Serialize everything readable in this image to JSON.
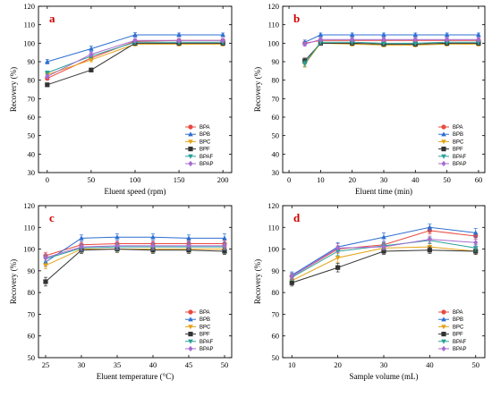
{
  "series_styles": [
    {
      "name": "BPA",
      "color": "#e84a40",
      "marker": "circle"
    },
    {
      "name": "BPB",
      "color": "#2e6fd0",
      "marker": "triangle-up"
    },
    {
      "name": "BPC",
      "color": "#e6a317",
      "marker": "triangle-down"
    },
    {
      "name": "BPF",
      "color": "#333333",
      "marker": "square"
    },
    {
      "name": "BPAF",
      "color": "#2aa198",
      "marker": "triangle-down"
    },
    {
      "name": "BPAP",
      "color": "#a86bd0",
      "marker": "diamond"
    }
  ],
  "chart_data": [
    {
      "type": "line",
      "panel": "a",
      "xlabel": "Eluent speed  (rpm)",
      "ylabel": "Recovery (%)",
      "xlim": [
        -10,
        210
      ],
      "ylim": [
        30,
        120
      ],
      "xticks": [
        0,
        50,
        100,
        150,
        200
      ],
      "yticks": [
        30,
        40,
        50,
        60,
        70,
        80,
        90,
        100,
        110,
        120
      ],
      "x": [
        0,
        50,
        100,
        150,
        200
      ],
      "grid": false,
      "legend": "bottom-right",
      "series": [
        {
          "name": "BPA",
          "values": [
            81,
            92,
            101,
            101.5,
            101.5
          ],
          "errors": [
            1,
            1.2,
            1,
            1,
            1
          ]
        },
        {
          "name": "BPB",
          "values": [
            90,
            97,
            104.5,
            104.5,
            104.5
          ],
          "errors": [
            1.2,
            1.5,
            1.2,
            1,
            1
          ]
        },
        {
          "name": "BPC",
          "values": [
            83,
            91,
            99.5,
            99.5,
            99.5
          ],
          "errors": [
            1,
            1,
            1,
            1,
            1
          ]
        },
        {
          "name": "BPF",
          "values": [
            77.5,
            85.5,
            100,
            100,
            100
          ],
          "errors": [
            1,
            1,
            1,
            1,
            1
          ]
        },
        {
          "name": "BPAF",
          "values": [
            84,
            93,
            100.5,
            100.5,
            100.5
          ],
          "errors": [
            1,
            1,
            1,
            1,
            1
          ]
        },
        {
          "name": "BPAP",
          "values": [
            82,
            94,
            101.5,
            101.5,
            101.5
          ],
          "errors": [
            1,
            1,
            1,
            1,
            1
          ]
        }
      ]
    },
    {
      "type": "line",
      "panel": "b",
      "xlabel": "Eluent time  (min)",
      "ylabel": "Recovery (%)",
      "xlim": [
        -2,
        62
      ],
      "ylim": [
        30,
        120
      ],
      "xticks": [
        0,
        10,
        20,
        30,
        40,
        50,
        60
      ],
      "yticks": [
        30,
        40,
        50,
        60,
        70,
        80,
        90,
        100,
        110,
        120
      ],
      "x": [
        5,
        10,
        20,
        30,
        40,
        50,
        60
      ],
      "grid": false,
      "legend": "bottom-right",
      "series": [
        {
          "name": "BPA",
          "values": [
            100,
            101.5,
            101.5,
            101.5,
            101.5,
            101.5,
            101.5
          ],
          "errors": [
            1,
            1,
            1,
            1,
            1,
            1,
            1
          ]
        },
        {
          "name": "BPB",
          "values": [
            100.5,
            104.5,
            104.5,
            104.5,
            104.5,
            104.5,
            104.5
          ],
          "errors": [
            1.2,
            1,
            1,
            1,
            1,
            1,
            1
          ]
        },
        {
          "name": "BPC",
          "values": [
            88.5,
            100,
            99.5,
            99,
            99,
            99.5,
            99.5
          ],
          "errors": [
            1.5,
            1,
            1,
            1,
            1,
            1,
            1
          ]
        },
        {
          "name": "BPF",
          "values": [
            90.5,
            100,
            100,
            99.5,
            99.5,
            100,
            100
          ],
          "errors": [
            1.5,
            1,
            1,
            1,
            1,
            1,
            1
          ]
        },
        {
          "name": "BPAF",
          "values": [
            89,
            100.5,
            100.5,
            100,
            100,
            100.5,
            100.5
          ],
          "errors": [
            1.5,
            1,
            1,
            1,
            1,
            1,
            1
          ]
        },
        {
          "name": "BPAP",
          "values": [
            99.5,
            102,
            102,
            102,
            102,
            102,
            102
          ],
          "errors": [
            1,
            1,
            1,
            1,
            1,
            1,
            1
          ]
        }
      ]
    },
    {
      "type": "line",
      "panel": "c",
      "xlabel": "Eluent temperature  (°C)",
      "ylabel": "Recovery (%)",
      "xlim": [
        24,
        51
      ],
      "ylim": [
        50,
        120
      ],
      "xticks": [
        25,
        30,
        35,
        40,
        45,
        50
      ],
      "yticks": [
        50,
        60,
        70,
        80,
        90,
        100,
        110,
        120
      ],
      "x": [
        25,
        30,
        35,
        40,
        45,
        50
      ],
      "grid": false,
      "legend": "bottom-right",
      "series": [
        {
          "name": "BPA",
          "values": [
            97,
            102,
            102.5,
            102.5,
            102.5,
            102.5
          ],
          "errors": [
            1.5,
            1.5,
            1.5,
            1.5,
            1.5,
            1.5
          ]
        },
        {
          "name": "BPB",
          "values": [
            94,
            105,
            105.5,
            105.5,
            105,
            105
          ],
          "errors": [
            2,
            1.5,
            1.5,
            1.5,
            1.5,
            2
          ]
        },
        {
          "name": "BPC",
          "values": [
            92.5,
            100,
            100,
            100,
            100,
            100
          ],
          "errors": [
            1.5,
            1.5,
            1.5,
            1.5,
            1.5,
            1.5
          ]
        },
        {
          "name": "BPF",
          "values": [
            85,
            99.5,
            100,
            99.5,
            99.5,
            99
          ],
          "errors": [
            2,
            1.5,
            1.5,
            1.5,
            1.5,
            1.5
          ]
        },
        {
          "name": "BPAF",
          "values": [
            95.5,
            100.5,
            101,
            101,
            101,
            101
          ],
          "errors": [
            1.5,
            1.5,
            1.5,
            1.5,
            1.5,
            1.5
          ]
        },
        {
          "name": "BPAP",
          "values": [
            96,
            101,
            101.5,
            101.5,
            101.5,
            101.5
          ],
          "errors": [
            1.5,
            1.5,
            1.5,
            1.5,
            1.5,
            1.5
          ]
        }
      ]
    },
    {
      "type": "line",
      "panel": "d",
      "xlabel": "Sample volume  (mL)",
      "ylabel": "Recovery (%)",
      "xlim": [
        8,
        52
      ],
      "ylim": [
        50,
        120
      ],
      "xticks": [
        10,
        20,
        30,
        40,
        50
      ],
      "yticks": [
        50,
        60,
        70,
        80,
        90,
        100,
        110,
        120
      ],
      "x": [
        10,
        20,
        30,
        40,
        50
      ],
      "grid": false,
      "legend": "bottom-right",
      "series": [
        {
          "name": "BPA",
          "values": [
            87.5,
            100,
            102,
            108.5,
            106
          ],
          "errors": [
            1.5,
            1.5,
            1.5,
            1.5,
            1.5
          ]
        },
        {
          "name": "BPB",
          "values": [
            88,
            101,
            105.5,
            110,
            107.5
          ],
          "errors": [
            1.5,
            2,
            2,
            1.5,
            2
          ]
        },
        {
          "name": "BPC",
          "values": [
            85.5,
            96,
            100.5,
            101,
            99
          ],
          "errors": [
            1.5,
            2,
            1.5,
            1.5,
            1.5
          ]
        },
        {
          "name": "BPF",
          "values": [
            84.5,
            91.5,
            99,
            99.5,
            99
          ],
          "errors": [
            1.5,
            2,
            1.5,
            1.5,
            1.5
          ]
        },
        {
          "name": "BPAF",
          "values": [
            87,
            99,
            101.5,
            104,
            100.5
          ],
          "errors": [
            1.5,
            2,
            1.5,
            1.5,
            1.5
          ]
        },
        {
          "name": "BPAP",
          "values": [
            87.5,
            100.5,
            101,
            104.5,
            103
          ],
          "errors": [
            1.5,
            2,
            1.5,
            1.5,
            1.5
          ]
        }
      ]
    }
  ]
}
